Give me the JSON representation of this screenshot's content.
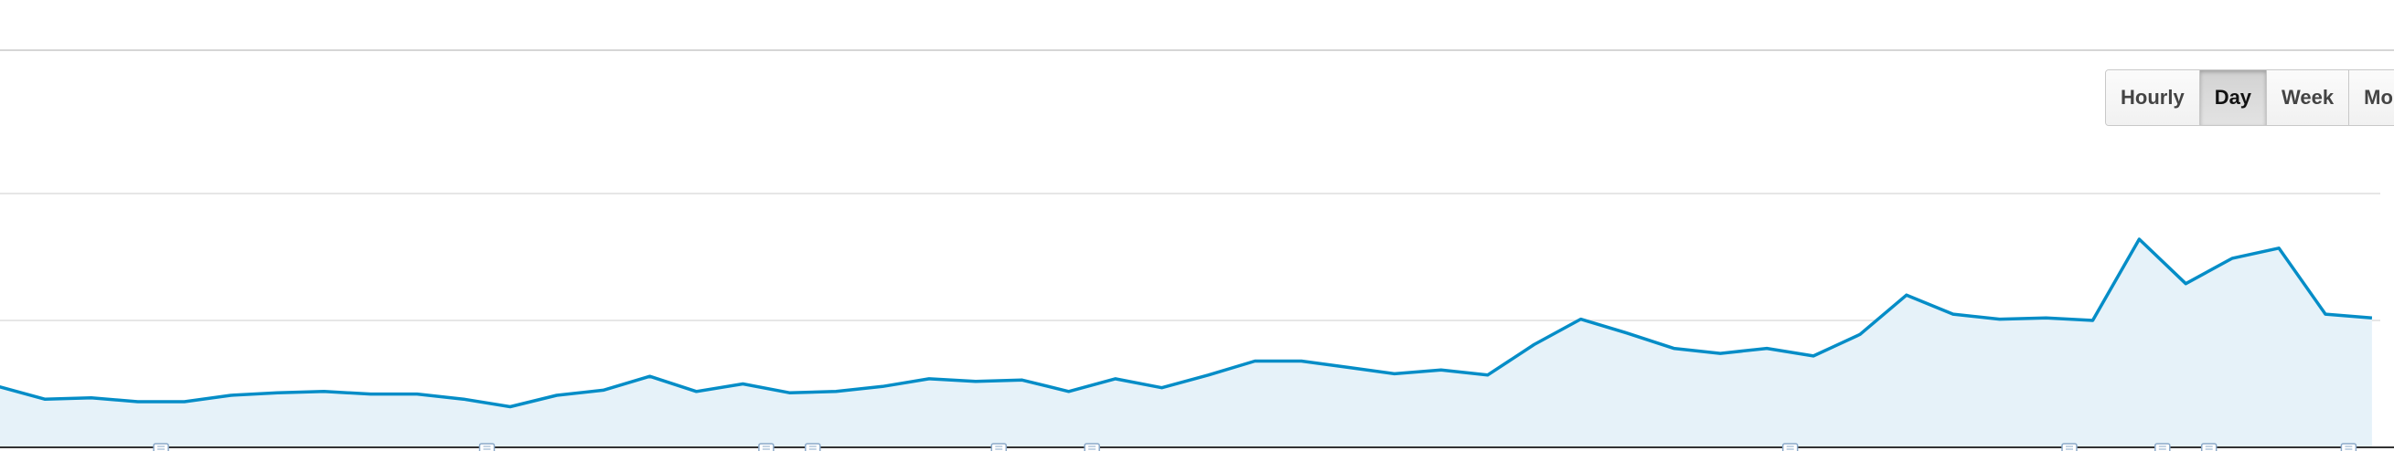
{
  "granularity": {
    "options": [
      {
        "label": "Hourly",
        "active": false
      },
      {
        "label": "Day",
        "active": true
      },
      {
        "label": "Week",
        "active": false
      },
      {
        "label": "Month",
        "active": false
      }
    ]
  },
  "colors": {
    "line": "#058dc7",
    "area": "#e6f2f9",
    "gridline": "#e6e6e6",
    "axis": "#333333",
    "annotation_marker": "#8aa9c9"
  },
  "chart_data": {
    "type": "area",
    "title": "",
    "xlabel": "",
    "ylabel": "",
    "grid": true,
    "gridline_levels": [
      100,
      200
    ],
    "ylim": [
      0,
      200
    ],
    "series": [
      {
        "values": [
          48,
          38,
          39,
          36,
          36,
          41,
          43,
          44,
          42,
          42,
          38,
          32,
          41,
          45,
          56,
          44,
          50,
          43,
          44,
          48,
          54,
          52,
          53,
          44,
          54,
          47,
          57,
          68,
          68,
          63,
          58,
          61,
          57,
          81,
          101,
          90,
          78,
          74,
          78,
          72,
          89,
          120,
          105,
          101,
          102,
          100,
          164,
          129,
          149,
          157,
          105,
          102
        ]
      }
    ],
    "annotation_marker_indices": [
      3,
      10,
      16,
      17,
      21,
      23,
      38,
      44,
      46,
      47,
      50
    ]
  }
}
